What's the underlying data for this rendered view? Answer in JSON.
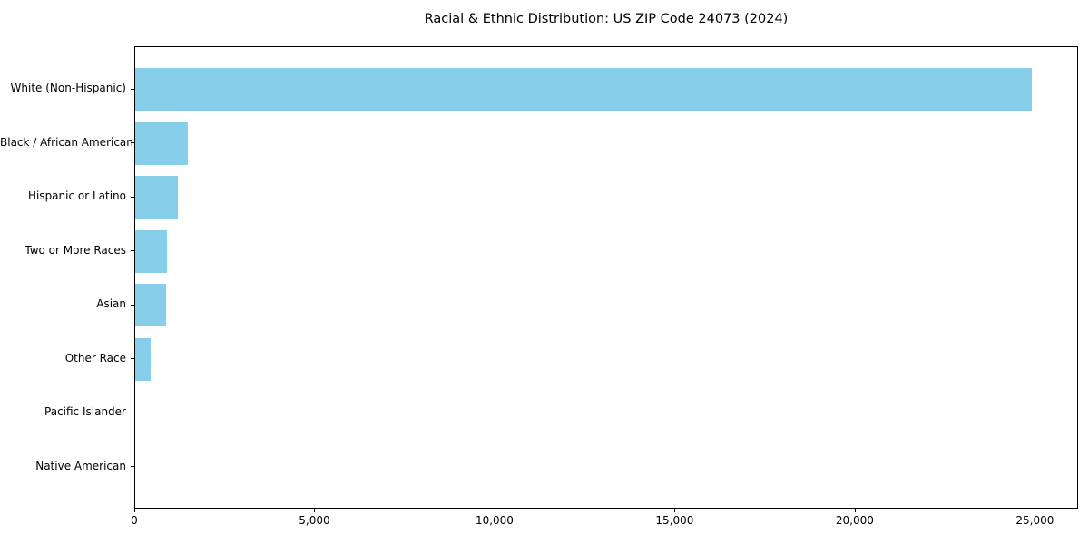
{
  "chart_data": {
    "type": "bar",
    "orientation": "horizontal",
    "title": "Racial & Ethnic Distribution: US ZIP Code 24073 (2024)",
    "categories": [
      "White (Non-Hispanic)",
      "Black / African American",
      "Hispanic or Latino",
      "Two or More Races",
      "Asian",
      "Other Race",
      "Pacific Islander",
      "Native American"
    ],
    "values": [
      24900,
      1460,
      1180,
      870,
      850,
      430,
      0,
      0
    ],
    "xlabel": "",
    "ylabel": "",
    "xlim": [
      0,
      26200
    ],
    "x_ticks": [
      0,
      5000,
      10000,
      15000,
      20000,
      25000
    ],
    "x_tick_labels": [
      "0",
      "5,000",
      "10,000",
      "15,000",
      "20,000",
      "25,000"
    ],
    "grid": false,
    "legend": false,
    "bar_color": "#87CEEB",
    "text_color": "#000000",
    "spine_color": "#000000",
    "background_color": "#ffffff"
  }
}
